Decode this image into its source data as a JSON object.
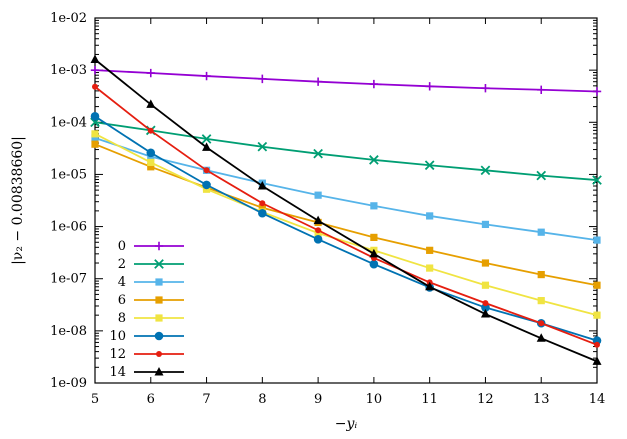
{
  "chart_data": {
    "type": "line",
    "title": "",
    "xlabel": "−yᵢ",
    "ylabel": "|ν₂ − 0.00838660|",
    "yscale": "log",
    "xlim": [
      5,
      14
    ],
    "ylim": [
      1e-09,
      0.01
    ],
    "x_ticks": [
      5,
      6,
      7,
      8,
      9,
      10,
      11,
      12,
      13,
      14
    ],
    "x_tick_labels": [
      "5",
      "6",
      "7",
      "8",
      "9",
      "10",
      "11",
      "12",
      "13",
      "14"
    ],
    "y_ticks": [
      1e-09,
      1e-08,
      1e-07,
      1e-06,
      1e-05,
      0.0001,
      0.001,
      0.01
    ],
    "y_tick_labels": [
      "1e-09",
      "1e-08",
      "1e-07",
      "1e-06",
      "1e-05",
      "1e-04",
      "1e-03",
      "1e-02"
    ],
    "legend_position": "bottom-left",
    "x": [
      5,
      6,
      7,
      8,
      9,
      10,
      11,
      12,
      13,
      14
    ],
    "series": [
      {
        "name": "0",
        "color": "#9400d3",
        "marker": "plus",
        "values": [
          0.001,
          0.00088,
          0.00077,
          0.00068,
          0.0006,
          0.00054,
          0.00049,
          0.00045,
          0.00042,
          0.00039
        ]
      },
      {
        "name": "2",
        "color": "#009e73",
        "marker": "cross",
        "values": [
          0.0001,
          7e-05,
          4.8e-05,
          3.4e-05,
          2.5e-05,
          1.9e-05,
          1.5e-05,
          1.2e-05,
          9.5e-06,
          7.8e-06
        ]
      },
      {
        "name": "4",
        "color": "#56b4e9",
        "marker": "square",
        "values": [
          5e-05,
          2.2e-05,
          1.2e-05,
          6.8e-06,
          4e-06,
          2.5e-06,
          1.6e-06,
          1.1e-06,
          7.8e-07,
          5.5e-07
        ]
      },
      {
        "name": "6",
        "color": "#e69f00",
        "marker": "square",
        "values": [
          3.8e-05,
          1.4e-05,
          5.6e-06,
          2.3e-06,
          1.2e-06,
          6.2e-07,
          3.5e-07,
          2e-07,
          1.2e-07,
          7.5e-08
        ]
      },
      {
        "name": "8",
        "color": "#f0e442",
        "marker": "square",
        "values": [
          6e-05,
          1.7e-05,
          5.2e-06,
          1.9e-06,
          7.5e-07,
          3.5e-07,
          1.6e-07,
          7.5e-08,
          3.8e-08,
          2e-08
        ]
      },
      {
        "name": "10",
        "color": "#0072b2",
        "marker": "circle",
        "values": [
          0.00013,
          2.6e-05,
          6.3e-06,
          1.8e-06,
          5.7e-07,
          1.9e-07,
          6.8e-08,
          2.8e-08,
          1.4e-08,
          6.5e-09
        ]
      },
      {
        "name": "12",
        "color": "#e51e10",
        "marker": "dot",
        "values": [
          0.00048,
          6.9e-05,
          1.2e-05,
          2.8e-06,
          8.5e-07,
          2.5e-07,
          8.5e-08,
          3.4e-08,
          1.4e-08,
          5.4e-09
        ]
      },
      {
        "name": "14",
        "color": "#000000",
        "marker": "triangle",
        "values": [
          0.0016,
          0.00022,
          3.3e-05,
          6e-06,
          1.3e-06,
          3e-07,
          7e-08,
          2.1e-08,
          7.2e-09,
          2.6e-09
        ]
      }
    ]
  }
}
